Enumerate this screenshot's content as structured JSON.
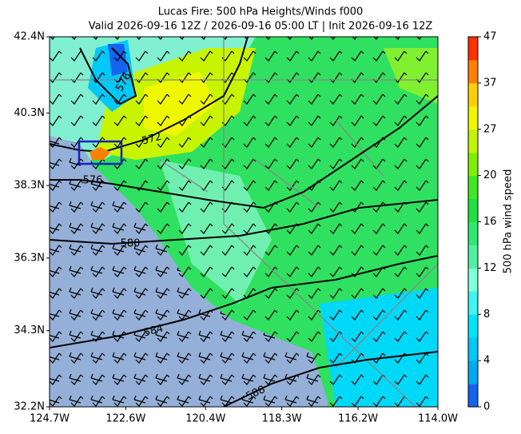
{
  "chart_data": {
    "type": "map",
    "title": "Lucas Fire: 500 hPa Heights/Winds f000",
    "subtitle": "Valid 2026-09-16 12Z / 2026-09-16 05:00 LT | Init 2026-09-16 12Z",
    "xlim": [
      -124.7,
      -114.0
    ],
    "ylim": [
      32.2,
      42.4
    ],
    "xticks": [
      {
        "value": -124.7,
        "label": "124.7W"
      },
      {
        "value": -122.6,
        "label": "122.6W"
      },
      {
        "value": -120.4,
        "label": "120.4W"
      },
      {
        "value": -118.3,
        "label": "118.3W"
      },
      {
        "value": -116.2,
        "label": "116.2W"
      },
      {
        "value": -114.0,
        "label": "114.0W"
      }
    ],
    "yticks": [
      {
        "value": 32.2,
        "label": "32.2N"
      },
      {
        "value": 34.3,
        "label": "34.3N"
      },
      {
        "value": 36.3,
        "label": "36.3N"
      },
      {
        "value": 38.3,
        "label": "38.3N"
      },
      {
        "value": 40.3,
        "label": "40.3N"
      },
      {
        "value": 42.4,
        "label": "42.4N"
      }
    ],
    "contour_labels": [
      "576",
      "572",
      "576",
      "580",
      "584",
      "588"
    ],
    "colorbar": {
      "label": "500 hPa wind speed",
      "ticks": [
        0,
        4,
        8,
        12,
        16,
        20,
        27,
        37,
        47
      ],
      "colors": [
        "#1464f0",
        "#00a8f0",
        "#00c8f8",
        "#00e4f8",
        "#40f4f0",
        "#80ffd8",
        "#50f0a0",
        "#30e870",
        "#20e040",
        "#40e820",
        "#80f000",
        "#c0f400",
        "#f0f800",
        "#ffd000",
        "#ff8000",
        "#ff3000"
      ]
    }
  }
}
